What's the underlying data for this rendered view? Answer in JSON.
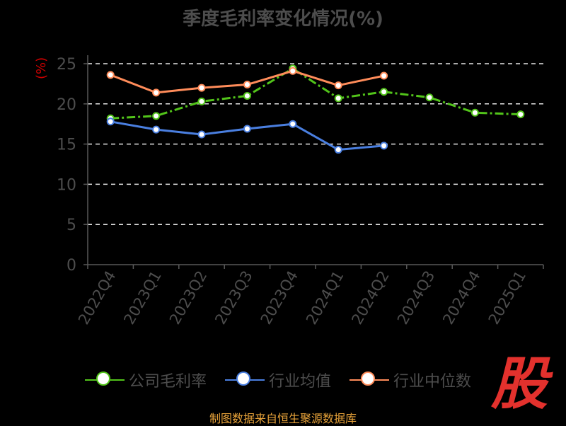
{
  "chart_data": {
    "type": "line",
    "title": "季度毛利率变化情况(%)",
    "ylabel": "(%)",
    "ylim": [
      0,
      25
    ],
    "yticks": [
      0,
      5,
      10,
      15,
      20,
      25
    ],
    "categories": [
      "2022Q4",
      "2023Q1",
      "2023Q2",
      "2023Q3",
      "2023Q4",
      "2024Q1",
      "2024Q2",
      "2024Q3",
      "2024Q4",
      "2025Q1"
    ],
    "grid": true,
    "legend_position": "bottom",
    "series": [
      {
        "name": "公司毛利率",
        "color": "#52c41a",
        "values": [
          18.2,
          18.5,
          20.3,
          21.0,
          24.4,
          20.7,
          21.5,
          20.8,
          18.9,
          18.7
        ]
      },
      {
        "name": "行业均值",
        "color": "#4a7fe0",
        "values": [
          17.8,
          16.8,
          16.2,
          16.9,
          17.5,
          14.3,
          14.8,
          null,
          null,
          null
        ]
      },
      {
        "name": "行业中位数",
        "color": "#ff8c5a",
        "values": [
          23.6,
          21.4,
          22.0,
          22.4,
          24.1,
          22.3,
          23.5,
          null,
          null,
          null
        ]
      }
    ]
  },
  "brand_mark": "股",
  "source_text": "制图数据来自恒生聚源数据库"
}
